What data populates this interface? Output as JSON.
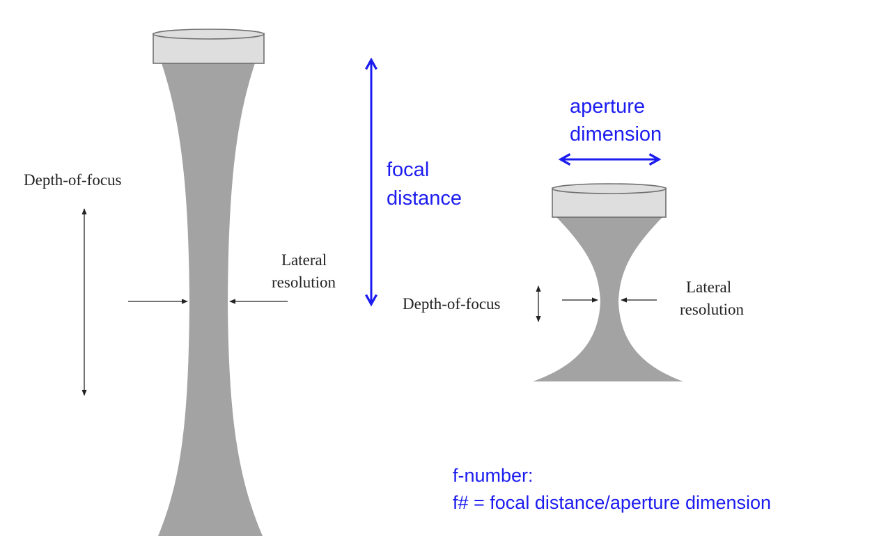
{
  "colors": {
    "beam": "#a3a3a3",
    "transducer_face": "#dedede",
    "transducer_edge": "#6f6f6f",
    "annotation_blue": "#1c1cf0",
    "label_black": "#222222"
  },
  "left_diagram": {
    "depth_of_focus_label": "Depth-of-focus",
    "lateral_resolution_lines": [
      "Lateral",
      "resolution"
    ]
  },
  "focal_distance": {
    "lines": [
      "focal",
      "distance"
    ]
  },
  "right_diagram": {
    "aperture_lines": [
      "aperture",
      "dimension"
    ],
    "depth_of_focus_label": "Depth-of-focus",
    "lateral_resolution_lines": [
      "Lateral",
      "resolution"
    ]
  },
  "f_number": {
    "title": "f-number:",
    "formula": "f# = focal distance/aperture dimension"
  }
}
